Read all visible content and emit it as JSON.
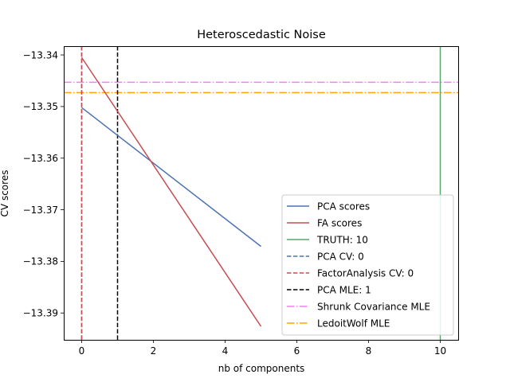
{
  "chart_data": {
    "type": "line",
    "title": "Heteroscedastic Noise",
    "xlabel": "nb of components",
    "ylabel": "CV scores",
    "xlim": [
      -0.5,
      10.5
    ],
    "ylim": [
      -13.3952,
      -13.3383
    ],
    "xticks": [
      0,
      2,
      4,
      6,
      8,
      10
    ],
    "yticks": [
      -13.34,
      -13.35,
      -13.36,
      -13.37,
      -13.38,
      -13.39
    ],
    "ytick_labels": [
      "−13.34",
      "−13.35",
      "−13.36",
      "−13.37",
      "−13.38",
      "−13.39"
    ],
    "grid": false,
    "legend_position": "lower-right",
    "series": [
      {
        "name": "PCA scores",
        "color": "#4c72b0",
        "style": "solid",
        "x": [
          0,
          5
        ],
        "y": [
          -13.3502,
          -13.3771
        ]
      },
      {
        "name": "FA scores",
        "color": "#c44e52",
        "style": "solid",
        "x": [
          0,
          5
        ],
        "y": [
          -13.3405,
          -13.3926
        ]
      }
    ],
    "vlines": [
      {
        "name": "TRUTH: 10",
        "x": 10,
        "color": "#55a868",
        "style": "solid"
      },
      {
        "name": "PCA CV: 0",
        "x": 0,
        "color": "#4c72b0",
        "style": "dashed"
      },
      {
        "name": "FactorAnalysis CV: 0",
        "x": 0,
        "color": "#c44e52",
        "style": "dashed"
      },
      {
        "name": "PCA MLE: 1",
        "x": 1,
        "color": "#000000",
        "style": "dashed"
      }
    ],
    "hlines": [
      {
        "name": "Shrunk Covariance MLE",
        "y": -13.3453,
        "color": "#ee82ee",
        "style": "dashdot"
      },
      {
        "name": "LedoitWolf MLE",
        "y": -13.3473,
        "color": "#ffa500",
        "style": "dashdot"
      }
    ],
    "legend_order": [
      "PCA scores",
      "FA scores",
      "TRUTH: 10",
      "PCA CV: 0",
      "FactorAnalysis CV: 0",
      "PCA MLE: 1",
      "Shrunk Covariance MLE",
      "LedoitWolf MLE"
    ]
  }
}
